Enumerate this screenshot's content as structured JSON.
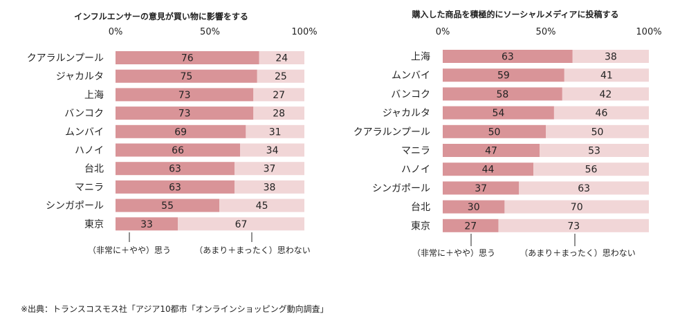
{
  "colors": {
    "agree": "#d99498",
    "disagree": "#f1d6d7",
    "axis": "#bbbbbb",
    "text": "#222222"
  },
  "chart_data": [
    {
      "type": "bar",
      "orientation": "horizontal",
      "stacked": true,
      "title": "インフルエンサーの意見が買い物に影響をする",
      "tick_labels": [
        "0%",
        "50%",
        "100%"
      ],
      "xlim": [
        0,
        100
      ],
      "categories": [
        "クアラルンプール",
        "ジャカルタ",
        "上海",
        "バンコク",
        "ムンバイ",
        "ハノイ",
        "台北",
        "マニラ",
        "シンガポール",
        "東京"
      ],
      "series": [
        {
          "name": "（非常に＋やや）思う",
          "values": [
            76,
            75,
            73,
            73,
            69,
            66,
            63,
            63,
            55,
            33
          ]
        },
        {
          "name": "（あまり＋まったく）思わない",
          "values": [
            24,
            25,
            27,
            28,
            31,
            34,
            37,
            38,
            45,
            67
          ]
        }
      ]
    },
    {
      "type": "bar",
      "orientation": "horizontal",
      "stacked": true,
      "title": "購入した商品を積極的にソーシャルメディアに投稿する",
      "tick_labels": [
        "0%",
        "50%",
        "100%"
      ],
      "xlim": [
        0,
        100
      ],
      "categories": [
        "上海",
        "ムンバイ",
        "バンコク",
        "ジャカルタ",
        "クアラルンプール",
        "マニラ",
        "ハノイ",
        "シンガポール",
        "台北",
        "東京"
      ],
      "series": [
        {
          "name": "（非常に＋やや）思う",
          "values": [
            63,
            59,
            58,
            54,
            50,
            47,
            44,
            37,
            30,
            27
          ]
        },
        {
          "name": "（あまり＋まったく）思わない",
          "values": [
            38,
            41,
            42,
            46,
            50,
            53,
            56,
            63,
            70,
            73
          ]
        }
      ]
    }
  ],
  "footer": "※出典：トランスコスモス社「アジア10都市「オンラインショッピング動向調査」"
}
